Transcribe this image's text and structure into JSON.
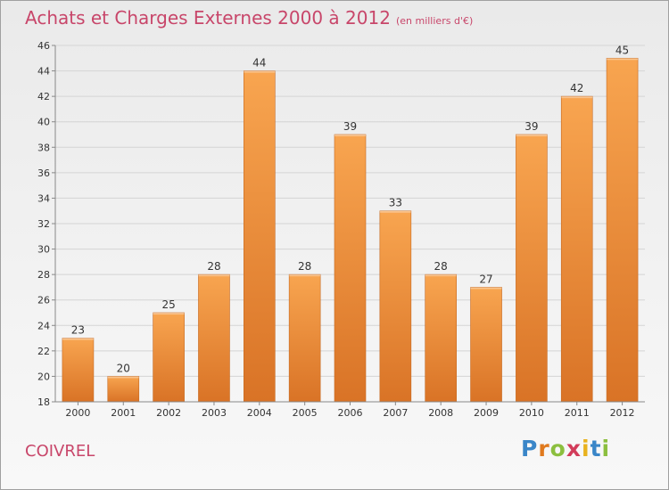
{
  "title": "Achats et Charges Externes 2000 à 2012",
  "subtitle": "(en milliers d'€)",
  "place_name": "COIVREL",
  "logo_text": "Proxiti",
  "colors": {
    "title": "#c8466a",
    "bar_light": "#f8a550",
    "bar_dark": "#d97326",
    "grid": "#d4d4d4"
  },
  "chart_data": {
    "type": "bar",
    "title": "Achats et Charges Externes 2000 à 2012",
    "subtitle": "(en milliers d'€)",
    "xlabel": "",
    "ylabel": "",
    "categories": [
      "2000",
      "2001",
      "2002",
      "2003",
      "2004",
      "2005",
      "2006",
      "2007",
      "2008",
      "2009",
      "2010",
      "2011",
      "2012"
    ],
    "values": [
      23,
      20,
      25,
      28,
      44,
      28,
      39,
      33,
      28,
      27,
      39,
      42,
      45
    ],
    "ylim": [
      18,
      46
    ],
    "yticks": [
      18,
      20,
      22,
      24,
      26,
      28,
      30,
      32,
      34,
      36,
      38,
      40,
      42,
      44,
      46
    ],
    "grid": true,
    "legend": "none"
  }
}
